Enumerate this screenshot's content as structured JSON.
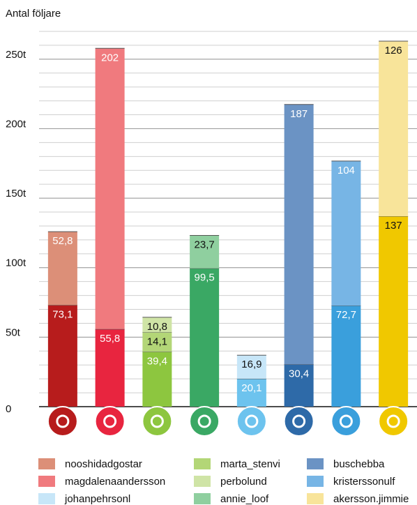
{
  "chart_data": {
    "type": "stacked_bar",
    "y_axis_label": "Antal följare",
    "categories": [
      null,
      null,
      null,
      null,
      null,
      null,
      null,
      null
    ],
    "ylim": [
      0,
      270
    ],
    "yticks": [
      0,
      {
        "value": 50,
        "label": "50t"
      },
      {
        "value": 100,
        "label": "100t"
      },
      {
        "value": 150,
        "label": "150t"
      },
      {
        "value": 200,
        "label": "200t"
      },
      {
        "value": 250,
        "label": "250t"
      }
    ],
    "grid": true,
    "minor_grid": 10,
    "series": [
      {
        "color": "#b71c1c",
        "values": [
          73.1,
          null,
          null,
          null,
          null,
          null,
          null,
          null
        ],
        "value_labels": [
          "73,1",
          null,
          null,
          null,
          null,
          null,
          null,
          null
        ]
      },
      {
        "color": "#e8253f",
        "values": [
          null,
          55.8,
          null,
          null,
          null,
          null,
          null,
          null
        ],
        "value_labels": [
          null,
          "55,8",
          null,
          null,
          null,
          null,
          null,
          null
        ]
      },
      {
        "color": "#8dc63f",
        "values": [
          null,
          null,
          39.4,
          null,
          null,
          null,
          null,
          null
        ],
        "value_labels": [
          null,
          null,
          "39,4",
          null,
          null,
          null,
          null,
          null
        ]
      },
      {
        "color": "#3aa864",
        "values": [
          null,
          null,
          null,
          99.5,
          null,
          null,
          null,
          null
        ],
        "value_labels": [
          null,
          null,
          null,
          "99,5",
          null,
          null,
          null,
          null
        ]
      },
      {
        "color": "#6dc3ee",
        "values": [
          null,
          null,
          null,
          null,
          20.1,
          null,
          null,
          null
        ],
        "value_labels": [
          null,
          null,
          null,
          null,
          "20,1",
          null,
          null,
          null
        ]
      },
      {
        "color": "#2e6aa8",
        "values": [
          null,
          null,
          null,
          null,
          null,
          30.4,
          null,
          null
        ],
        "value_labels": [
          null,
          null,
          null,
          null,
          null,
          "30,4",
          null,
          null
        ]
      },
      {
        "color": "#3a9fdc",
        "values": [
          null,
          null,
          null,
          null,
          null,
          null,
          72.7,
          null
        ],
        "value_labels": [
          null,
          null,
          null,
          null,
          null,
          null,
          "72,7",
          null
        ]
      },
      {
        "color": "#f0c800",
        "values": [
          null,
          null,
          null,
          null,
          null,
          null,
          null,
          137
        ]
      },
      {
        "name": "nooshidadgostar",
        "color": "#dc8f78",
        "values": [
          52.8,
          null,
          null,
          null,
          null,
          null,
          null,
          null
        ],
        "value_labels": [
          "52,8",
          null,
          null,
          null,
          null,
          null,
          null,
          null
        ]
      },
      {
        "name": "magdalenaandersson",
        "color": "#f07a7e",
        "values": [
          null,
          202,
          null,
          null,
          null,
          null,
          null,
          null
        ]
      },
      {
        "name": "johanpehrsonl",
        "color": "#c7e6f8",
        "values": [
          null,
          null,
          null,
          null,
          16.9,
          null,
          null,
          null
        ],
        "value_labels": [
          null,
          null,
          null,
          null,
          "16,9",
          null,
          null,
          null
        ]
      },
      {
        "name": "marta_stenvi",
        "color": "#b3d677",
        "values": [
          null,
          null,
          14.1,
          null,
          null,
          null,
          null,
          null
        ],
        "value_labels": [
          null,
          null,
          "14,1",
          null,
          null,
          null,
          null,
          null
        ]
      },
      {
        "name": "perbolund",
        "color": "#cfe4a6",
        "values": [
          null,
          null,
          10.8,
          null,
          null,
          null,
          null,
          null
        ],
        "value_labels": [
          null,
          null,
          "10,8",
          null,
          null,
          null,
          null,
          null
        ]
      },
      {
        "name": "annie_loof",
        "color": "#8fcf9f",
        "values": [
          null,
          null,
          null,
          23.7,
          null,
          null,
          null,
          null
        ],
        "value_labels": [
          null,
          null,
          null,
          "23,7",
          null,
          null,
          null,
          null
        ]
      },
      {
        "name": "buschebba",
        "color": "#6b93c4",
        "values": [
          null,
          null,
          null,
          null,
          null,
          187,
          null,
          null
        ]
      },
      {
        "name": "kristerssonulf",
        "color": "#77b5e5",
        "values": [
          null,
          null,
          null,
          null,
          null,
          null,
          104,
          null
        ]
      },
      {
        "name": "akersson.jimmie",
        "color": "#f8e49a",
        "values": [
          null,
          null,
          null,
          null,
          null,
          null,
          null,
          126
        ]
      }
    ]
  }
}
